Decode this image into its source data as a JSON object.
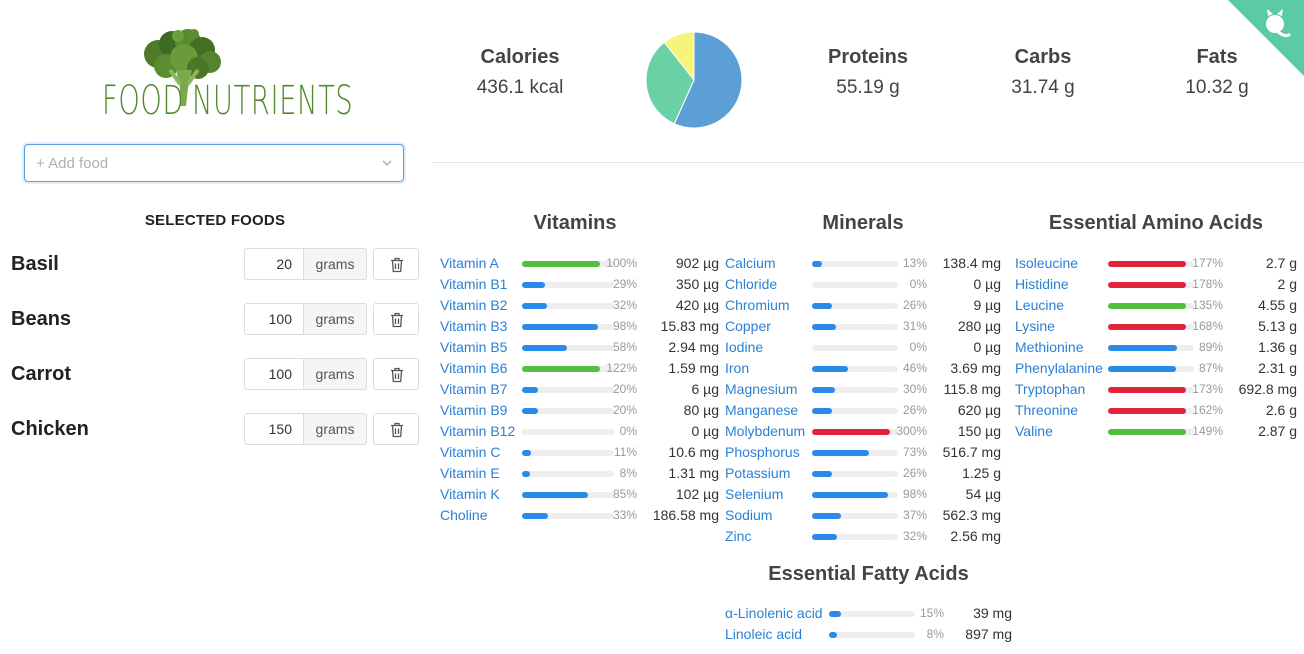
{
  "app": {
    "logo_text_left": "FOOD",
    "logo_text_right": "NUTRIENTS",
    "add_food_placeholder": "+ Add food"
  },
  "colors": {
    "link": "#2a80d5",
    "bar_blue": "#2a8ae8",
    "bar_green": "#52c03e",
    "bar_red": "#e2243a",
    "pie_blue": "#5b9fd6",
    "pie_green": "#6ad1a6",
    "pie_yellow": "#f6f57a",
    "corner_teal": "#5cc9a7"
  },
  "selected_foods": {
    "title": "SELECTED FOODS",
    "items": [
      {
        "name": "Basil",
        "qty": "20",
        "unit": "grams"
      },
      {
        "name": "Beans",
        "qty": "100",
        "unit": "grams"
      },
      {
        "name": "Carrot",
        "qty": "100",
        "unit": "grams"
      },
      {
        "name": "Chicken",
        "qty": "150",
        "unit": "grams"
      }
    ]
  },
  "summary": {
    "calories": {
      "label": "Calories",
      "value": "436.1 kcal"
    },
    "proteins": {
      "label": "Proteins",
      "value": "55.19 g"
    },
    "carbs": {
      "label": "Carbs",
      "value": "31.74 g"
    },
    "fats": {
      "label": "Fats",
      "value": "10.32 g"
    }
  },
  "chart_data": {
    "type": "pie",
    "title": "",
    "labels": [
      "Proteins",
      "Carbs",
      "Fats"
    ],
    "values": [
      55.19,
      31.74,
      10.32
    ]
  },
  "vitamins": {
    "title": "Vitamins",
    "items": [
      {
        "name": "Vitamin A",
        "pct": 100,
        "pct_label": "100%",
        "amount": "902 µg",
        "color": "green"
      },
      {
        "name": "Vitamin B1",
        "pct": 29,
        "pct_label": "29%",
        "amount": "350 µg",
        "color": "blue"
      },
      {
        "name": "Vitamin B2",
        "pct": 32,
        "pct_label": "32%",
        "amount": "420 µg",
        "color": "blue"
      },
      {
        "name": "Vitamin B3",
        "pct": 98,
        "pct_label": "98%",
        "amount": "15.83 mg",
        "color": "blue"
      },
      {
        "name": "Vitamin B5",
        "pct": 58,
        "pct_label": "58%",
        "amount": "2.94 mg",
        "color": "blue"
      },
      {
        "name": "Vitamin B6",
        "pct": 122,
        "pct_label": "122%",
        "amount": "1.59 mg",
        "color": "green"
      },
      {
        "name": "Vitamin B7",
        "pct": 20,
        "pct_label": "20%",
        "amount": "6 µg",
        "color": "blue"
      },
      {
        "name": "Vitamin B9",
        "pct": 20,
        "pct_label": "20%",
        "amount": "80 µg",
        "color": "blue"
      },
      {
        "name": "Vitamin B12",
        "pct": 0,
        "pct_label": "0%",
        "amount": "0 µg",
        "color": "blue"
      },
      {
        "name": "Vitamin C",
        "pct": 11,
        "pct_label": "11%",
        "amount": "10.6 mg",
        "color": "blue"
      },
      {
        "name": "Vitamin E",
        "pct": 8,
        "pct_label": "8%",
        "amount": "1.31 mg",
        "color": "blue"
      },
      {
        "name": "Vitamin K",
        "pct": 85,
        "pct_label": "85%",
        "amount": "102 µg",
        "color": "blue"
      },
      {
        "name": "Choline",
        "pct": 33,
        "pct_label": "33%",
        "amount": "186.58 mg",
        "color": "blue"
      }
    ]
  },
  "minerals": {
    "title": "Minerals",
    "items": [
      {
        "name": "Calcium",
        "pct": 13,
        "pct_label": "13%",
        "amount": "138.4 mg",
        "color": "blue"
      },
      {
        "name": "Chloride",
        "pct": 0,
        "pct_label": "0%",
        "amount": "0 µg",
        "color": "blue"
      },
      {
        "name": "Chromium",
        "pct": 26,
        "pct_label": "26%",
        "amount": "9 µg",
        "color": "blue"
      },
      {
        "name": "Copper",
        "pct": 31,
        "pct_label": "31%",
        "amount": "280 µg",
        "color": "blue"
      },
      {
        "name": "Iodine",
        "pct": 0,
        "pct_label": "0%",
        "amount": "0 µg",
        "color": "blue"
      },
      {
        "name": "Iron",
        "pct": 46,
        "pct_label": "46%",
        "amount": "3.69 mg",
        "color": "blue"
      },
      {
        "name": "Magnesium",
        "pct": 30,
        "pct_label": "30%",
        "amount": "115.8 mg",
        "color": "blue"
      },
      {
        "name": "Manganese",
        "pct": 26,
        "pct_label": "26%",
        "amount": "620 µg",
        "color": "blue"
      },
      {
        "name": "Molybdenum",
        "pct": 300,
        "pct_label": "300%",
        "amount": "150 µg",
        "color": "red"
      },
      {
        "name": "Phosphorus",
        "pct": 73,
        "pct_label": "73%",
        "amount": "516.7 mg",
        "color": "blue"
      },
      {
        "name": "Potassium",
        "pct": 26,
        "pct_label": "26%",
        "amount": "1.25 g",
        "color": "blue"
      },
      {
        "name": "Selenium",
        "pct": 98,
        "pct_label": "98%",
        "amount": "54 µg",
        "color": "blue"
      },
      {
        "name": "Sodium",
        "pct": 37,
        "pct_label": "37%",
        "amount": "562.3 mg",
        "color": "blue"
      },
      {
        "name": "Zinc",
        "pct": 32,
        "pct_label": "32%",
        "amount": "2.56 mg",
        "color": "blue"
      }
    ]
  },
  "amino_acids": {
    "title": "Essential Amino Acids",
    "items": [
      {
        "name": "Isoleucine",
        "pct": 177,
        "pct_label": "177%",
        "amount": "2.7 g",
        "color": "red"
      },
      {
        "name": "Histidine",
        "pct": 178,
        "pct_label": "178%",
        "amount": "2 g",
        "color": "red"
      },
      {
        "name": "Leucine",
        "pct": 135,
        "pct_label": "135%",
        "amount": "4.55 g",
        "color": "green"
      },
      {
        "name": "Lysine",
        "pct": 168,
        "pct_label": "168%",
        "amount": "5.13 g",
        "color": "red"
      },
      {
        "name": "Methionine",
        "pct": 89,
        "pct_label": "89%",
        "amount": "1.36 g",
        "color": "blue"
      },
      {
        "name": "Phenylalanine",
        "pct": 87,
        "pct_label": "87%",
        "amount": "2.31 g",
        "color": "blue"
      },
      {
        "name": "Tryptophan",
        "pct": 173,
        "pct_label": "173%",
        "amount": "692.8 mg",
        "color": "red"
      },
      {
        "name": "Threonine",
        "pct": 162,
        "pct_label": "162%",
        "amount": "2.6 g",
        "color": "red"
      },
      {
        "name": "Valine",
        "pct": 149,
        "pct_label": "149%",
        "amount": "2.87 g",
        "color": "green"
      }
    ]
  },
  "fatty_acids": {
    "title": "Essential Fatty Acids",
    "items": [
      {
        "name": "α-Linolenic acid",
        "pct": 15,
        "pct_label": "15%",
        "amount": "39 mg",
        "color": "blue"
      },
      {
        "name": "Linoleic acid",
        "pct": 8,
        "pct_label": "8%",
        "amount": "897 mg",
        "color": "blue"
      }
    ]
  }
}
